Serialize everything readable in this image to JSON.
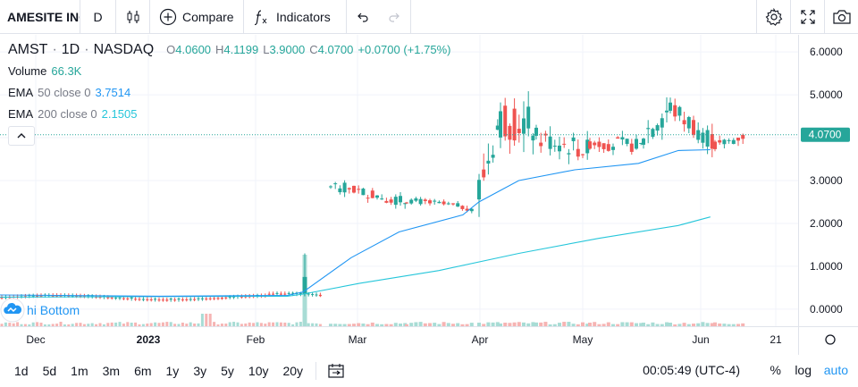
{
  "toolbar": {
    "symbol": "AMESITE INC",
    "interval": "D",
    "compare_label": "Compare",
    "indicators_label": "Indicators"
  },
  "legend": {
    "ticker": "AMST",
    "interval": "1D",
    "exchange": "NASDAQ",
    "o_label": "O",
    "o": "4.0600",
    "h_label": "H",
    "h": "4.1199",
    "l_label": "L",
    "l": "3.9000",
    "c_label": "C",
    "c": "4.0700",
    "change": "+0.0700 (+1.75%)",
    "volume_label": "Volume",
    "volume": "66.3K",
    "ema50_label": "EMA",
    "ema50_params": "50 close 0",
    "ema50_value": "3.7514",
    "ema200_label": "EMA",
    "ema200_params": "200 close 0",
    "ema200_value": "2.1505"
  },
  "watermark": "hi Bottom",
  "bottom": {
    "ranges": [
      "1d",
      "5d",
      "1m",
      "3m",
      "6m",
      "1y",
      "3y",
      "5y",
      "10y",
      "20y"
    ],
    "time": "00:05:49 (UTC-4)",
    "percent": "%",
    "log": "log",
    "auto": "auto"
  },
  "colors": {
    "up": "#26a69a",
    "down": "#ef5350",
    "ema50": "#2196f3",
    "ema200": "#26c6da",
    "grid": "#f0f3fa"
  },
  "chart_data": {
    "type": "candlestick",
    "y_ticks": [
      "6.0000",
      "5.0000",
      "4.0000",
      "3.0000",
      "2.0000",
      "1.0000",
      "0.0000"
    ],
    "ylim": [
      -0.4,
      6.4
    ],
    "x_ticks": [
      "Dec",
      "2023",
      "Feb",
      "Mar",
      "Apr",
      "May",
      "Jun",
      "21"
    ],
    "last_price_label": "4.0700",
    "last_price": 4.07,
    "segments": [
      {
        "from": 0.26,
        "to": 0.3,
        "vol": 0.08
      },
      {
        "from": 0.3,
        "to": 0.34,
        "vol": 0.15
      },
      {
        "from": 0.34,
        "to": 0.28,
        "vol": 0.2
      },
      {
        "from": 2.9,
        "to": 3.1,
        "vol": 0.15
      },
      {
        "from": 3.1,
        "to": 2.4,
        "vol": 0.15
      },
      {
        "from": 2.4,
        "to": 4.5,
        "vol": 0.6
      },
      {
        "from": 4.5,
        "to": 3.6,
        "vol": 0.35
      },
      {
        "from": 3.6,
        "to": 5.1,
        "vol": 0.45
      },
      {
        "from": 5.1,
        "to": 4.0,
        "vol": 0.3
      }
    ],
    "ema50": [
      [
        0,
        0.33
      ],
      [
        0.2,
        0.3
      ],
      [
        0.36,
        0.32
      ],
      [
        0.38,
        0.4
      ],
      [
        0.44,
        1.2
      ],
      [
        0.5,
        1.8
      ],
      [
        0.58,
        2.2
      ],
      [
        0.6,
        2.5
      ],
      [
        0.65,
        3.0
      ],
      [
        0.72,
        3.25
      ],
      [
        0.8,
        3.4
      ],
      [
        0.85,
        3.7
      ],
      [
        0.89,
        3.72
      ]
    ],
    "ema200": [
      [
        0,
        0.28
      ],
      [
        0.36,
        0.3
      ],
      [
        0.38,
        0.35
      ],
      [
        0.45,
        0.6
      ],
      [
        0.55,
        0.9
      ],
      [
        0.65,
        1.3
      ],
      [
        0.75,
        1.65
      ],
      [
        0.85,
        1.95
      ],
      [
        0.89,
        2.15
      ]
    ]
  }
}
